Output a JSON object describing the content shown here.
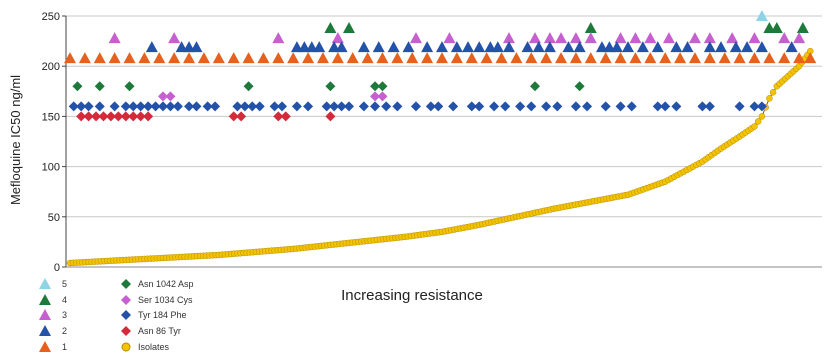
{
  "chart_data": {
    "type": "scatter",
    "xlabel": "Increasing resistance",
    "ylabel": "Mefloquine IC50 ng/ml",
    "ylim": [
      0,
      250
    ],
    "yticks": [
      0,
      50,
      100,
      150,
      200,
      250
    ],
    "grid": true,
    "legend_position": "bottom-left",
    "colors": {
      "copy5": "#8fd3e6",
      "copy4": "#1e7a3a",
      "copy3": "#c65fd0",
      "copy2": "#2452a8",
      "copy1": "#e8601c",
      "asn1042": "#1e7a3a",
      "ser1034": "#c65fd0",
      "tyr184": "#2452a8",
      "asn86": "#d42a3a",
      "isolates": "#f5c400"
    },
    "legend": {
      "copy_numbers": [
        "5",
        "4",
        "3",
        "2",
        "1"
      ],
      "mutations": [
        "Asn 1042 Asp",
        "Ser 1034 Cys",
        "Tyr 184 Phe",
        "Asn 86 Tyr",
        "Isolates"
      ]
    },
    "x_range": [
      0,
      200
    ],
    "isolates_curve": [
      [
        0,
        4
      ],
      [
        10,
        6
      ],
      [
        20,
        8
      ],
      [
        30,
        10
      ],
      [
        40,
        12
      ],
      [
        50,
        15
      ],
      [
        60,
        18
      ],
      [
        70,
        22
      ],
      [
        80,
        26
      ],
      [
        90,
        30
      ],
      [
        100,
        35
      ],
      [
        110,
        42
      ],
      [
        120,
        50
      ],
      [
        130,
        58
      ],
      [
        140,
        65
      ],
      [
        150,
        72
      ],
      [
        160,
        85
      ],
      [
        165,
        95
      ],
      [
        170,
        105
      ],
      [
        175,
        118
      ],
      [
        180,
        130
      ],
      [
        184,
        140
      ],
      [
        186,
        150
      ],
      [
        188,
        168
      ],
      [
        190,
        180
      ],
      [
        193,
        190
      ],
      [
        196,
        200
      ],
      [
        199,
        215
      ]
    ],
    "series": [
      {
        "key": "copy5",
        "shape": "triangle",
        "y": 250,
        "x": [
          186
        ]
      },
      {
        "key": "copy4",
        "shape": "triangle",
        "y": 238,
        "x": [
          70,
          75,
          140,
          188,
          190,
          197
        ]
      },
      {
        "key": "copy3",
        "shape": "triangle",
        "y": 228,
        "x": [
          12,
          28,
          56,
          72,
          93,
          102,
          118,
          125,
          129,
          132,
          136,
          140,
          148,
          152,
          156,
          161,
          168,
          172,
          178,
          184,
          192,
          196
        ]
      },
      {
        "key": "copy2",
        "shape": "triangle",
        "y": 219,
        "x": [
          22,
          30,
          32,
          34,
          61,
          63,
          65,
          67,
          71,
          73,
          79,
          83,
          87,
          91,
          96,
          100,
          104,
          107,
          110,
          113,
          115,
          118,
          123,
          126,
          129,
          134,
          137,
          143,
          145,
          147,
          150,
          154,
          158,
          163,
          166,
          172,
          175,
          179,
          182,
          186,
          194
        ]
      },
      {
        "key": "copy1",
        "shape": "triangle",
        "y": 208,
        "x": [
          0,
          4,
          8,
          12,
          16,
          20,
          24,
          28,
          32,
          36,
          40,
          44,
          48,
          52,
          56,
          60,
          64,
          68,
          72,
          76,
          80,
          84,
          88,
          92,
          96,
          100,
          104,
          108,
          112,
          116,
          120,
          124,
          128,
          132,
          136,
          140,
          144,
          148,
          152,
          156,
          160,
          164,
          168,
          172,
          176,
          180,
          184,
          188,
          192,
          196,
          199
        ]
      },
      {
        "key": "asn1042",
        "shape": "diamond",
        "y": 180,
        "x": [
          2,
          8,
          16,
          48,
          70,
          82,
          84,
          125,
          137
        ]
      },
      {
        "key": "ser1034",
        "shape": "diamond",
        "y": 170,
        "x": [
          25,
          27,
          82,
          84
        ]
      },
      {
        "key": "tyr184",
        "shape": "diamond",
        "y": 160,
        "x": [
          1,
          3,
          5,
          8,
          12,
          15,
          17,
          19,
          21,
          23,
          25,
          27,
          29,
          32,
          34,
          37,
          39,
          45,
          47,
          49,
          51,
          55,
          57,
          61,
          64,
          69,
          71,
          73,
          75,
          79,
          82,
          85,
          88,
          93,
          97,
          99,
          103,
          108,
          110,
          114,
          117,
          121,
          124,
          128,
          131,
          136,
          139,
          144,
          148,
          151,
          158,
          160,
          163,
          170,
          172,
          180,
          184,
          186
        ]
      },
      {
        "key": "asn86",
        "shape": "diamond",
        "y": 150,
        "x": [
          3,
          5,
          7,
          9,
          11,
          13,
          15,
          17,
          19,
          21,
          44,
          46,
          56,
          58,
          70
        ]
      }
    ]
  }
}
